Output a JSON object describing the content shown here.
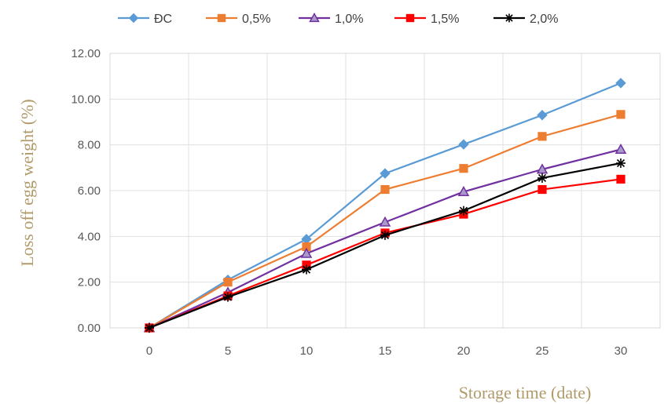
{
  "chart_data": {
    "type": "line",
    "title": "",
    "xlabel": "Storage time (date)",
    "ylabel": "Loss off egg weight (%)",
    "x": [
      0,
      5,
      10,
      15,
      20,
      25,
      30
    ],
    "x_tick_labels": [
      "0",
      "5",
      "10",
      "15",
      "20",
      "25",
      "30"
    ],
    "y_tick_labels": [
      "0.00",
      "2.00",
      "4.00",
      "6.00",
      "8.00",
      "10.00",
      "12.00"
    ],
    "ylim": [
      0,
      12
    ],
    "grid": true,
    "legend_position": "top",
    "series": [
      {
        "name": "ĐC",
        "color": "#5b9bd5",
        "marker": "diamond",
        "values": [
          0,
          2.1,
          3.88,
          6.75,
          8.02,
          9.3,
          10.7
        ]
      },
      {
        "name": "0,5%",
        "color": "#ed7d31",
        "marker": "square",
        "values": [
          0,
          2.0,
          3.55,
          6.05,
          6.97,
          8.37,
          9.33
        ]
      },
      {
        "name": "1,0%",
        "color": "#7030a0",
        "marker": "triangle",
        "values": [
          0,
          1.55,
          3.25,
          4.62,
          5.95,
          6.93,
          7.8
        ]
      },
      {
        "name": "1,5%",
        "color": "#ff0000",
        "marker": "square",
        "values": [
          0,
          1.4,
          2.75,
          4.15,
          4.97,
          6.05,
          6.5
        ]
      },
      {
        "name": "2,0%",
        "color": "#000000",
        "marker": "star",
        "values": [
          0,
          1.35,
          2.55,
          4.05,
          5.12,
          6.55,
          7.2
        ]
      }
    ]
  }
}
